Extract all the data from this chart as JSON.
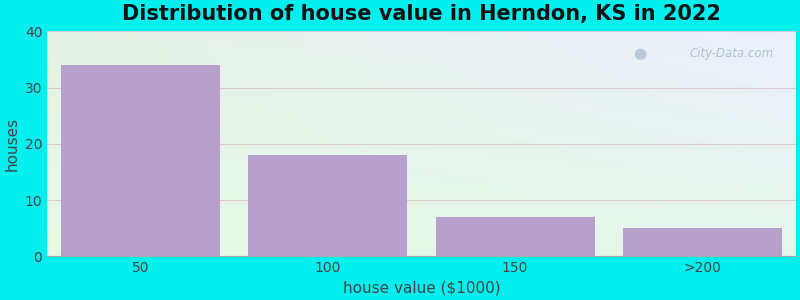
{
  "title": "Distribution of house value in Herndon, KS in 2022",
  "xlabel": "house value ($1000)",
  "ylabel": "houses",
  "categories": [
    "50",
    "100",
    "150",
    ">200"
  ],
  "values": [
    34,
    18,
    7,
    5
  ],
  "bar_color": "#b8a0cc",
  "ylim": [
    0,
    40
  ],
  "yticks": [
    0,
    10,
    20,
    30,
    40
  ],
  "background_outer": "#00f0f0",
  "grid_color": "#ddc8cc",
  "title_fontsize": 15,
  "axis_label_fontsize": 11,
  "tick_fontsize": 10,
  "watermark": "City-Data.com"
}
